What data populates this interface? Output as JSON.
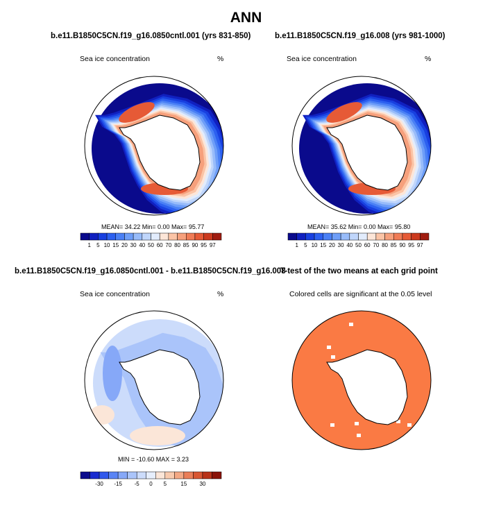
{
  "header": {
    "title": "ANN"
  },
  "panels": [
    {
      "title": "b.e11.B1850C5CN.f19_g16.0850cntl.001 (yrs 831-850)",
      "variable": "Sea ice concentration",
      "units": "%",
      "stats": "MEAN=  34.22  Min=   0.00  Max=  95.77",
      "colorbar_labels": [
        "1",
        "5",
        "10",
        "15",
        "20",
        "30",
        "40",
        "50",
        "60",
        "70",
        "80",
        "85",
        "90",
        "95",
        "97"
      ]
    },
    {
      "title": "b.e11.B1850C5CN.f19_g16.008 (yrs 981-1000)",
      "variable": "Sea ice concentration",
      "units": "%",
      "stats": "MEAN=  35.62  Min=   0.00  Max=  95.80",
      "colorbar_labels": [
        "1",
        "5",
        "10",
        "15",
        "20",
        "30",
        "40",
        "50",
        "60",
        "70",
        "80",
        "85",
        "90",
        "95",
        "97"
      ]
    },
    {
      "title": "b.e11.B1850C5CN.f19_g16.0850cntl.001 - b.e11.B1850C5CN.f19_g16.008",
      "variable": "Sea ice concentration",
      "units": "%",
      "stats": "MIN = -10.60 MAX =   3.23",
      "colorbar_labels": [
        "-30",
        "-15",
        "-5",
        "0",
        "5",
        "15",
        "30"
      ]
    },
    {
      "title": "T-test of the two means at each grid point",
      "note": "Colored cells are significant at the 0.05 level"
    }
  ],
  "colors": {
    "abs_scale": [
      "#0a0a8c",
      "#1020c0",
      "#1840e0",
      "#2c60f0",
      "#4a80f5",
      "#6e9ef8",
      "#98bcfa",
      "#c0d6fb",
      "#e2ecfc",
      "#fde6d8",
      "#fbc4a6",
      "#f6a07c",
      "#f07c56",
      "#e65a36",
      "#cc3a1e",
      "#a01c10"
    ],
    "diff_scale": [
      "#0a0a8c",
      "#1a2cd0",
      "#3058ec",
      "#5a84f5",
      "#86a8f8",
      "#aac4fa",
      "#ccdcfb",
      "#e6eefc",
      "#fbe6d8",
      "#f8caae",
      "#f3a884",
      "#ea7e58",
      "#d85632",
      "#b83218",
      "#8a1208"
    ],
    "ttest": "#fa7a44",
    "land": "#ffffff",
    "coast": "#000000"
  }
}
